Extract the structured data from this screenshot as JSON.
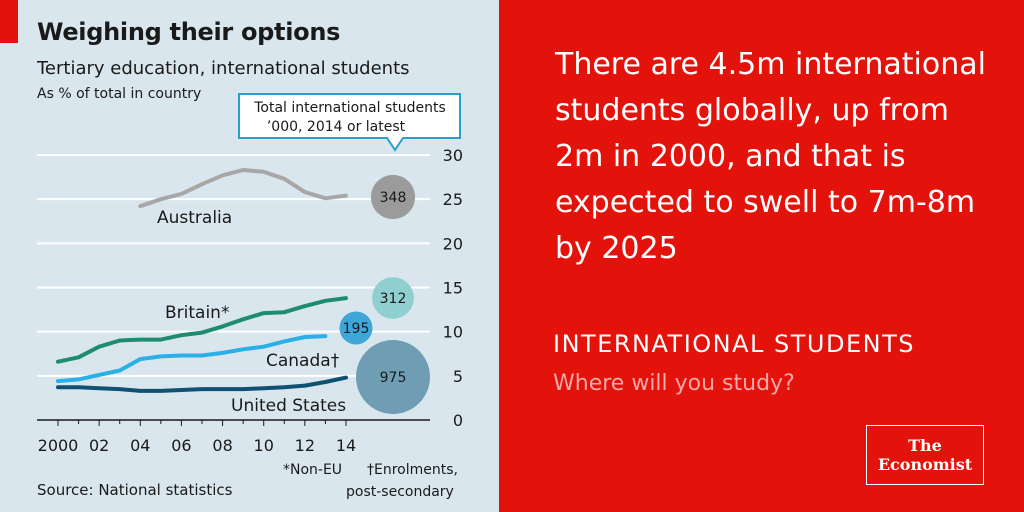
{
  "colors": {
    "left_bg": "#d9e6ee",
    "accent_red": "#e3120b",
    "australia": "#a7a7a7",
    "britain": "#1e8c6e",
    "canada": "#2ab0e6",
    "united_states": "#0e5172",
    "bubble_australia": "#9b9b9b",
    "bubble_britain": "#8fcfd0",
    "bubble_canada": "#3ea6d8",
    "bubble_us": "#6e9db4"
  },
  "chart_data": {
    "type": "line",
    "title": "Weighing their options",
    "subtitle": "Tertiary education, international students",
    "units": "As % of total in country",
    "source": "Source: National statistics",
    "x_tick_labels": [
      "2000",
      "02",
      "04",
      "06",
      "08",
      "10",
      "12",
      "14"
    ],
    "x_ticks": [
      2000,
      2002,
      2004,
      2006,
      2008,
      2010,
      2012,
      2014
    ],
    "y_ticks": [
      0,
      5,
      10,
      15,
      20,
      25,
      30
    ],
    "ylim": [
      0,
      30
    ],
    "xlim": [
      2000,
      2014
    ],
    "grid": true,
    "series": [
      {
        "name": "Australia",
        "color_key": "australia",
        "x": [
          2004,
          2005,
          2006,
          2007,
          2008,
          2009,
          2010,
          2011,
          2012,
          2013,
          2014
        ],
        "y": [
          24.2,
          25.0,
          25.6,
          26.7,
          27.7,
          28.3,
          28.1,
          27.3,
          25.8,
          25.1,
          25.4
        ]
      },
      {
        "name": "Britain*",
        "color_key": "britain",
        "x": [
          2000,
          2001,
          2002,
          2003,
          2004,
          2005,
          2006,
          2007,
          2008,
          2009,
          2010,
          2011,
          2012,
          2013,
          2014
        ],
        "y": [
          6.6,
          7.1,
          8.3,
          9.0,
          9.1,
          9.1,
          9.6,
          9.9,
          10.6,
          11.4,
          12.1,
          12.2,
          12.9,
          13.5,
          13.8
        ]
      },
      {
        "name": "Canada†",
        "color_key": "canada",
        "x": [
          2000,
          2001,
          2002,
          2003,
          2004,
          2005,
          2006,
          2007,
          2008,
          2009,
          2010,
          2011,
          2012,
          2013
        ],
        "y": [
          4.4,
          4.6,
          5.1,
          5.6,
          6.9,
          7.2,
          7.3,
          7.3,
          7.6,
          8.0,
          8.3,
          8.9,
          9.4,
          9.5
        ]
      },
      {
        "name": "United States",
        "color_key": "united_states",
        "x": [
          2000,
          2001,
          2002,
          2003,
          2004,
          2005,
          2006,
          2007,
          2008,
          2009,
          2010,
          2011,
          2012,
          2013,
          2014
        ],
        "y": [
          3.7,
          3.7,
          3.6,
          3.5,
          3.3,
          3.3,
          3.4,
          3.5,
          3.5,
          3.5,
          3.6,
          3.7,
          3.9,
          4.3,
          4.8
        ]
      }
    ],
    "bubbles": {
      "caption_line1": "Total international students",
      "caption_line2": "’000, 2014 or latest",
      "items": [
        {
          "series": "Australia",
          "value": 348,
          "label": "348",
          "color_key": "bubble_australia"
        },
        {
          "series": "Britain*",
          "value": 312,
          "label": "312",
          "color_key": "bubble_britain"
        },
        {
          "series": "Canada†",
          "value": 195,
          "label": "195",
          "color_key": "bubble_canada"
        },
        {
          "series": "United States",
          "value": 975,
          "label": "975",
          "color_key": "bubble_us"
        }
      ]
    },
    "footnotes": {
      "non_eu": "*Non-EU",
      "enrolments_line1": "†Enrolments,",
      "enrolments_line2": "post-secondary"
    }
  },
  "headline": {
    "lines": [
      "There are 4.5m international",
      "students globally, up from",
      "2m in 2000, and that is",
      "expected to swell to 7m-8m",
      "by 2025"
    ]
  },
  "section": {
    "label": "INTERNATIONAL STUDENTS",
    "subtitle": "Where will you study?"
  },
  "logo": {
    "line1": "The",
    "line2": "Economist"
  }
}
